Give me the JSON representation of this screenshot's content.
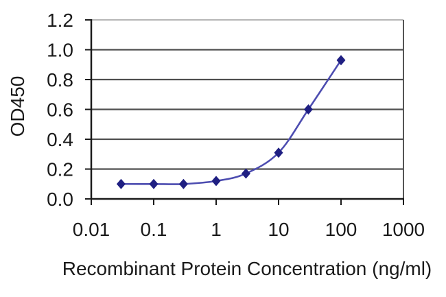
{
  "figure": {
    "background": "#ffffff"
  },
  "chart_data": {
    "type": "line",
    "title": "",
    "xlabel": "Recombinant Protein Concentration (ng/ml)",
    "ylabel": "OD450",
    "x_scale": "log",
    "x": [
      0.03,
      0.1,
      0.3,
      1,
      3,
      10,
      30,
      100
    ],
    "y": [
      0.1,
      0.1,
      0.1,
      0.12,
      0.17,
      0.31,
      0.6,
      0.93
    ],
    "xlim": [
      0.01,
      1000
    ],
    "ylim": [
      0.0,
      1.2
    ],
    "x_tick_values": [
      0.01,
      0.1,
      1,
      10,
      100,
      1000
    ],
    "x_tick_labels": [
      "0.01",
      "0.1",
      "1",
      "10",
      "100",
      "1000"
    ],
    "y_tick_values": [
      0.0,
      0.2,
      0.4,
      0.6,
      0.8,
      1.0,
      1.2
    ],
    "y_tick_labels": [
      "0.0",
      "0.2",
      "0.4",
      "0.6",
      "0.8",
      "1.0",
      "1.2"
    ],
    "grid": "horizontal",
    "legend": "none",
    "marker": "diamond",
    "line_smoothing": true,
    "colors": {
      "line": "#4c4cb0",
      "marker": "#1f1f82",
      "gridline": "#4f4f4f",
      "axis": "#1a1a1a",
      "border_top": "#9e9e9e",
      "border_right": "#555555",
      "text": "#1a1a1a"
    }
  }
}
